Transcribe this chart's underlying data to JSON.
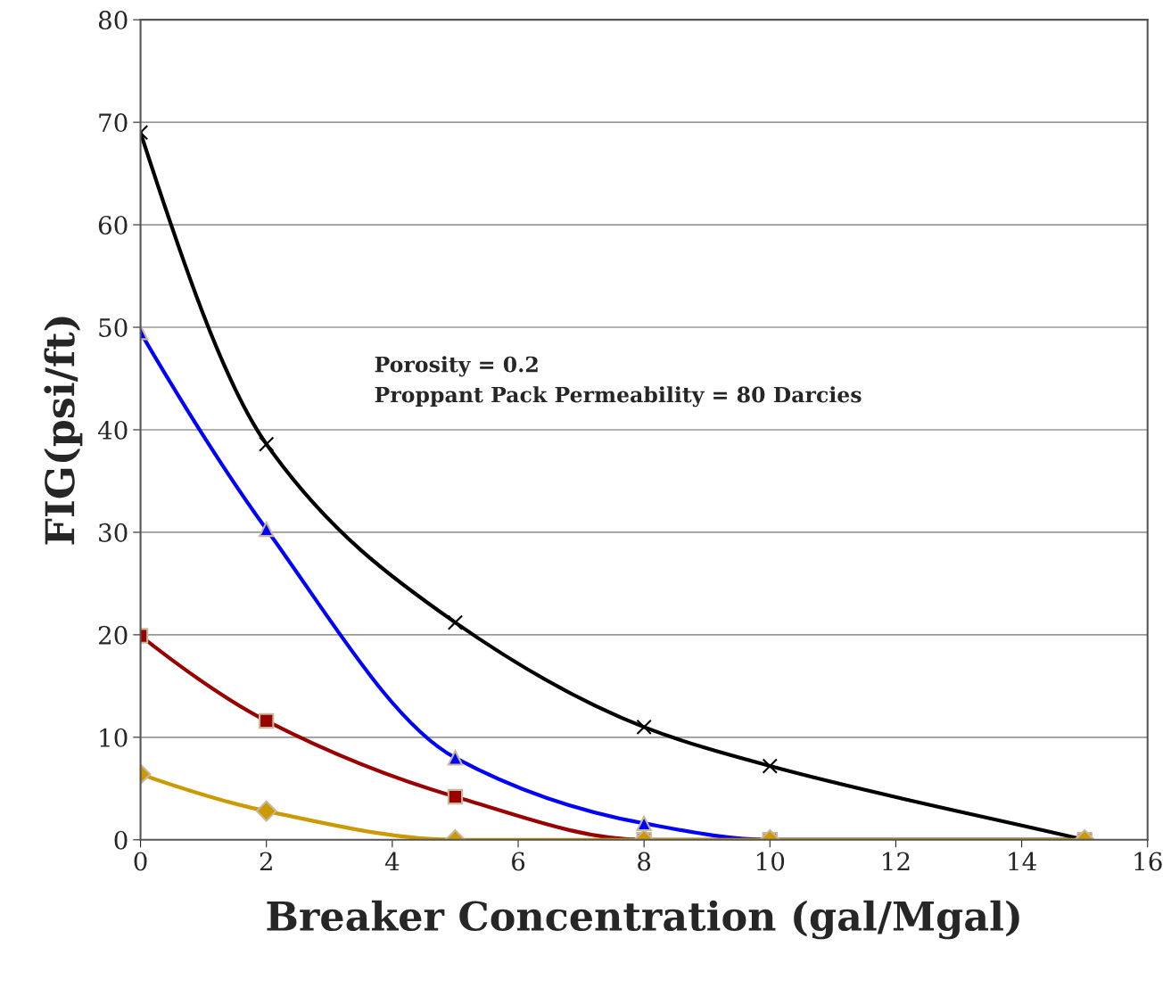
{
  "chart_data": {
    "type": "line",
    "xlabel": "Breaker Concentration (gal/Mgal)",
    "ylabel": "FIG(psi/ft)",
    "xlim": [
      0,
      16
    ],
    "xticks": [
      0,
      2,
      4,
      6,
      8,
      10,
      12,
      14,
      16
    ],
    "ylim": [
      0,
      80
    ],
    "yticks": [
      0,
      10,
      20,
      30,
      40,
      50,
      60,
      70,
      80
    ],
    "grid": "y",
    "legend": false,
    "x": [
      0,
      2,
      5,
      8,
      10,
      15
    ],
    "series": [
      {
        "color": "#000000",
        "marker": "cross",
        "values": [
          69,
          38.6,
          21.2,
          11,
          7.2,
          0
        ]
      },
      {
        "color": "#0000ff",
        "marker": "triangle",
        "values": [
          49.5,
          30.3,
          8,
          1.6,
          0,
          0
        ]
      },
      {
        "color": "#990000",
        "marker": "square",
        "values": [
          19.9,
          11.6,
          4.2,
          0,
          0,
          0
        ]
      },
      {
        "color": "#cc9900",
        "marker": "diamond",
        "values": [
          6.4,
          2.8,
          0,
          0,
          0,
          0
        ]
      }
    ],
    "annotations": [
      "Porosity = 0.2\nProppant Pack Permeability = 80 Darcies"
    ]
  }
}
